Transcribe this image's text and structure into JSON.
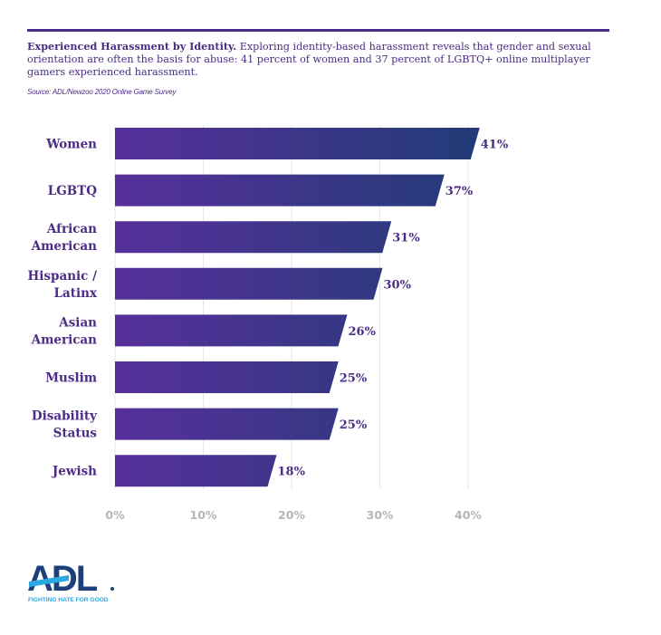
{
  "header": {
    "title": "Experienced Harassment by Identity.",
    "description": "Exploring identity-based harassment reveals that gender and sexual orientation are often the basis for abuse: 41 percent of women and 37 percent of LGBTQ+ online multiplayer gamers experienced harassment.",
    "source": "Source: ADL/Newzoo 2020 Online Game Survey"
  },
  "chart_data": {
    "type": "bar",
    "orientation": "horizontal",
    "categories": [
      [
        "Women"
      ],
      [
        "LGBTQ"
      ],
      [
        "African",
        "American"
      ],
      [
        "Hispanic /",
        "Latinx"
      ],
      [
        "Asian",
        "American"
      ],
      [
        "Muslim"
      ],
      [
        "Disability",
        "Status"
      ],
      [
        "Jewish"
      ]
    ],
    "values": [
      41,
      37,
      31,
      30,
      26,
      25,
      25,
      18
    ],
    "data_labels": [
      "41%",
      "37%",
      "31%",
      "30%",
      "26%",
      "25%",
      "25%",
      "18%"
    ],
    "xlim": [
      0,
      40
    ],
    "xticks": [
      0,
      10,
      20,
      30,
      40
    ],
    "xtick_labels": [
      "0%",
      "10%",
      "20%",
      "30%",
      "40%"
    ],
    "grid": "vertical",
    "colors": {
      "bar_start": "#57309b",
      "bar_end": "#233b78",
      "label": "#4b2c86",
      "tick": "#b5b5b5",
      "grid": "#e6e6e6"
    }
  },
  "logo": {
    "text": "ADL",
    "tagline": "FIGHTING HATE FOR GOOD",
    "colors": {
      "navy": "#1d3f7a",
      "blue": "#2aa8e0"
    }
  }
}
